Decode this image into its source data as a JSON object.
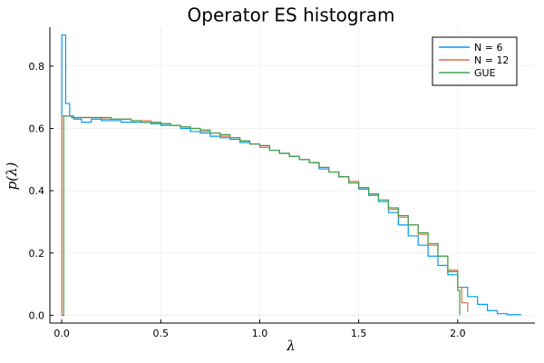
{
  "chart_data": {
    "type": "line",
    "title": "Operator ES histogram",
    "xlabel": "λ",
    "ylabel": "p(λ)",
    "xlim": [
      -0.06,
      2.39
    ],
    "ylim": [
      -0.025,
      0.925
    ],
    "xticks": [
      0.0,
      0.5,
      1.0,
      1.5,
      2.0
    ],
    "xtick_labels": [
      "0.0",
      "0.5",
      "1.0",
      "1.5",
      "2.0"
    ],
    "yticks": [
      0.0,
      0.2,
      0.4,
      0.6,
      0.8
    ],
    "ytick_labels": [
      "0.0",
      "0.2",
      "0.4",
      "0.6",
      "0.8"
    ],
    "grid": true,
    "legend_position": "top-right",
    "series": [
      {
        "name": "N = 6",
        "color": "#009af9",
        "step": true,
        "x": [
          0.0,
          0.02,
          0.04,
          0.06,
          0.1,
          0.15,
          0.2,
          0.25,
          0.3,
          0.35,
          0.4,
          0.45,
          0.5,
          0.55,
          0.6,
          0.65,
          0.7,
          0.75,
          0.8,
          0.85,
          0.9,
          0.95,
          1.0,
          1.05,
          1.1,
          1.15,
          1.2,
          1.25,
          1.3,
          1.35,
          1.4,
          1.45,
          1.5,
          1.55,
          1.6,
          1.65,
          1.7,
          1.75,
          1.8,
          1.85,
          1.9,
          1.95,
          2.0,
          2.05,
          2.1,
          2.15,
          2.2,
          2.25,
          2.32
        ],
        "y": [
          0.9,
          0.68,
          0.64,
          0.63,
          0.62,
          0.63,
          0.625,
          0.625,
          0.62,
          0.62,
          0.62,
          0.615,
          0.61,
          0.61,
          0.6,
          0.59,
          0.585,
          0.575,
          0.57,
          0.565,
          0.555,
          0.55,
          0.54,
          0.53,
          0.52,
          0.51,
          0.5,
          0.49,
          0.47,
          0.46,
          0.445,
          0.425,
          0.405,
          0.385,
          0.365,
          0.33,
          0.29,
          0.255,
          0.225,
          0.19,
          0.16,
          0.13,
          0.09,
          0.06,
          0.035,
          0.015,
          0.005,
          0.002,
          0.002
        ]
      },
      {
        "name": "N = 12",
        "color": "#e26f46",
        "step": true,
        "x": [
          0.0,
          0.02,
          0.05,
          0.1,
          0.15,
          0.2,
          0.25,
          0.3,
          0.35,
          0.4,
          0.45,
          0.5,
          0.55,
          0.6,
          0.65,
          0.7,
          0.75,
          0.8,
          0.85,
          0.9,
          0.95,
          1.0,
          1.05,
          1.1,
          1.15,
          1.2,
          1.25,
          1.3,
          1.35,
          1.4,
          1.45,
          1.5,
          1.55,
          1.6,
          1.65,
          1.7,
          1.75,
          1.8,
          1.85,
          1.9,
          1.95,
          2.0,
          2.02,
          2.05
        ],
        "y": [
          0.64,
          0.64,
          0.635,
          0.635,
          0.635,
          0.63,
          0.63,
          0.63,
          0.625,
          0.625,
          0.62,
          0.615,
          0.61,
          0.605,
          0.6,
          0.59,
          0.585,
          0.575,
          0.57,
          0.56,
          0.55,
          0.54,
          0.53,
          0.52,
          0.51,
          0.5,
          0.49,
          0.475,
          0.46,
          0.445,
          0.43,
          0.41,
          0.39,
          0.37,
          0.34,
          0.315,
          0.29,
          0.26,
          0.225,
          0.19,
          0.145,
          0.09,
          0.04,
          0.01
        ]
      },
      {
        "name": "GUE",
        "color": "#3da44d",
        "step": true,
        "x": [
          0.0,
          0.01,
          0.05,
          0.1,
          0.15,
          0.2,
          0.25,
          0.3,
          0.35,
          0.4,
          0.45,
          0.5,
          0.55,
          0.6,
          0.65,
          0.7,
          0.75,
          0.8,
          0.85,
          0.9,
          0.95,
          1.0,
          1.05,
          1.1,
          1.15,
          1.2,
          1.25,
          1.3,
          1.35,
          1.4,
          1.45,
          1.5,
          1.55,
          1.6,
          1.65,
          1.7,
          1.75,
          1.8,
          1.85,
          1.9,
          1.95,
          2.0,
          2.01
        ],
        "y": [
          0.0,
          0.64,
          0.635,
          0.635,
          0.635,
          0.635,
          0.63,
          0.63,
          0.625,
          0.62,
          0.62,
          0.615,
          0.61,
          0.605,
          0.6,
          0.595,
          0.585,
          0.58,
          0.57,
          0.56,
          0.55,
          0.545,
          0.53,
          0.52,
          0.51,
          0.5,
          0.49,
          0.475,
          0.46,
          0.445,
          0.425,
          0.41,
          0.39,
          0.37,
          0.345,
          0.32,
          0.29,
          0.265,
          0.23,
          0.19,
          0.14,
          0.08,
          0.0
        ]
      }
    ]
  }
}
